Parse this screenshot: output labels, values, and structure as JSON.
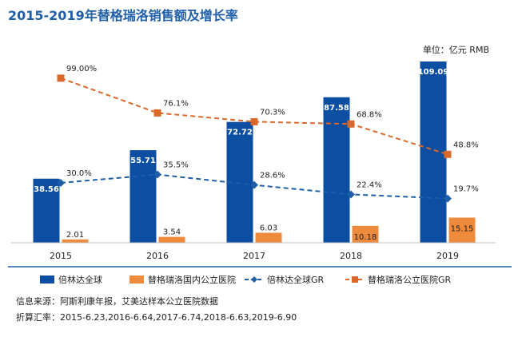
{
  "chart_data": {
    "type": "bar",
    "title": "2015-2019年替格瑞洛销售额及增长率",
    "unit_label": "单位：亿元 RMB",
    "categories": [
      "2015",
      "2016",
      "2017",
      "2018",
      "2019"
    ],
    "bar_series": [
      {
        "name": "倍林达全球",
        "color": "#0b4ea2",
        "values": [
          38.56,
          55.71,
          72.72,
          87.58,
          109.09
        ],
        "labels": [
          "38.56",
          "55.71",
          "72.72",
          "87.58",
          "109.09"
        ]
      },
      {
        "name": "替格瑞洛国内公立医院",
        "color": "#ee8a3c",
        "values": [
          2.01,
          3.54,
          6.03,
          10.18,
          15.15
        ],
        "labels": [
          "2.01",
          "3.54",
          "6.03",
          "10.18",
          "15.15"
        ]
      }
    ],
    "line_series": [
      {
        "name": "倍林达全球GR",
        "color": "#1f5fa8",
        "marker": "diamond",
        "values": [
          30.0,
          35.5,
          28.6,
          22.4,
          19.7
        ],
        "labels": [
          "30.0%",
          "35.5%",
          "28.6%",
          "22.4%",
          "19.7%"
        ]
      },
      {
        "name": "替格瑞洛公立医院GR",
        "color": "#d9682a",
        "marker": "square",
        "values": [
          99.0,
          76.1,
          70.3,
          68.8,
          48.8
        ],
        "labels": [
          "99.00%",
          "76.1%",
          "70.3%",
          "68.8%",
          "48.8%"
        ]
      }
    ],
    "legend_position": "bottom",
    "grid": false
  },
  "footer": {
    "source": "信息来源：阿斯利康年报，艾美达样本公立医院数据",
    "rates": "折算汇率：2015-6.23,2016-6.64,2017-6.74,2018-6.63,2019-6.90"
  }
}
